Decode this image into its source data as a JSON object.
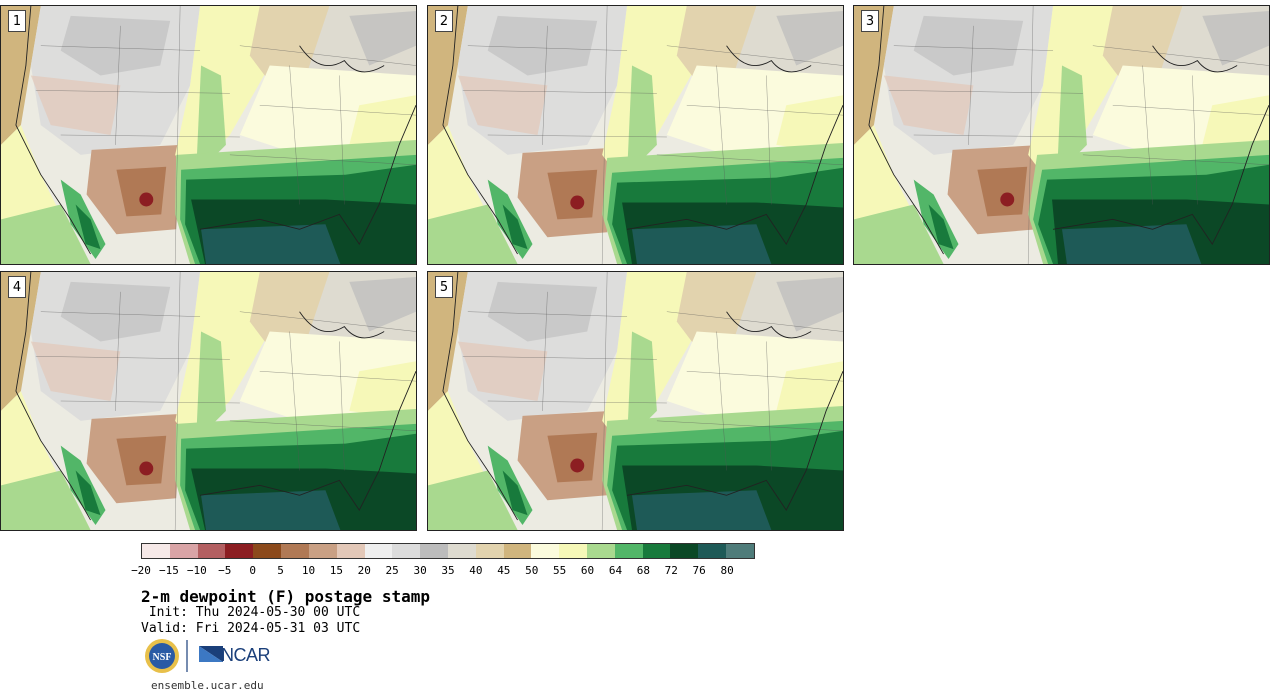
{
  "panels": [
    {
      "label": "1"
    },
    {
      "label": "2"
    },
    {
      "label": "3"
    },
    {
      "label": "4"
    },
    {
      "label": "5"
    }
  ],
  "colorbar": {
    "colors": [
      "#f6e9e8",
      "#d9a4a6",
      "#b35f61",
      "#8c1e22",
      "#8c4a1c",
      "#b07955",
      "#c9a084",
      "#e3c8b8",
      "#efefef",
      "#dcdcdc",
      "#bcbcbc",
      "#dedbd0",
      "#e2d3ae",
      "#d0b57e",
      "#fbfbdd",
      "#f6f8b8",
      "#a9d98f",
      "#52b668",
      "#187a3c",
      "#0b4826",
      "#1e5a57",
      "#4f7c7a"
    ],
    "tick_labels": [
      "−20",
      "−15",
      "−10",
      "−5",
      "0",
      "5",
      "10",
      "15",
      "20",
      "25",
      "30",
      "35",
      "40",
      "45",
      "50",
      "55",
      "60",
      "64",
      "68",
      "72",
      "76",
      "80"
    ]
  },
  "title": "2-m dewpoint (F) postage stamp",
  "init_line": " Init: Thu 2024-05-30 00 UTC",
  "valid_line": "Valid: Fri 2024-05-31 03 UTC",
  "logos": {
    "nsf": "NSF",
    "ncar": "NCAR"
  },
  "website": "ensemble.ucar.edu"
}
